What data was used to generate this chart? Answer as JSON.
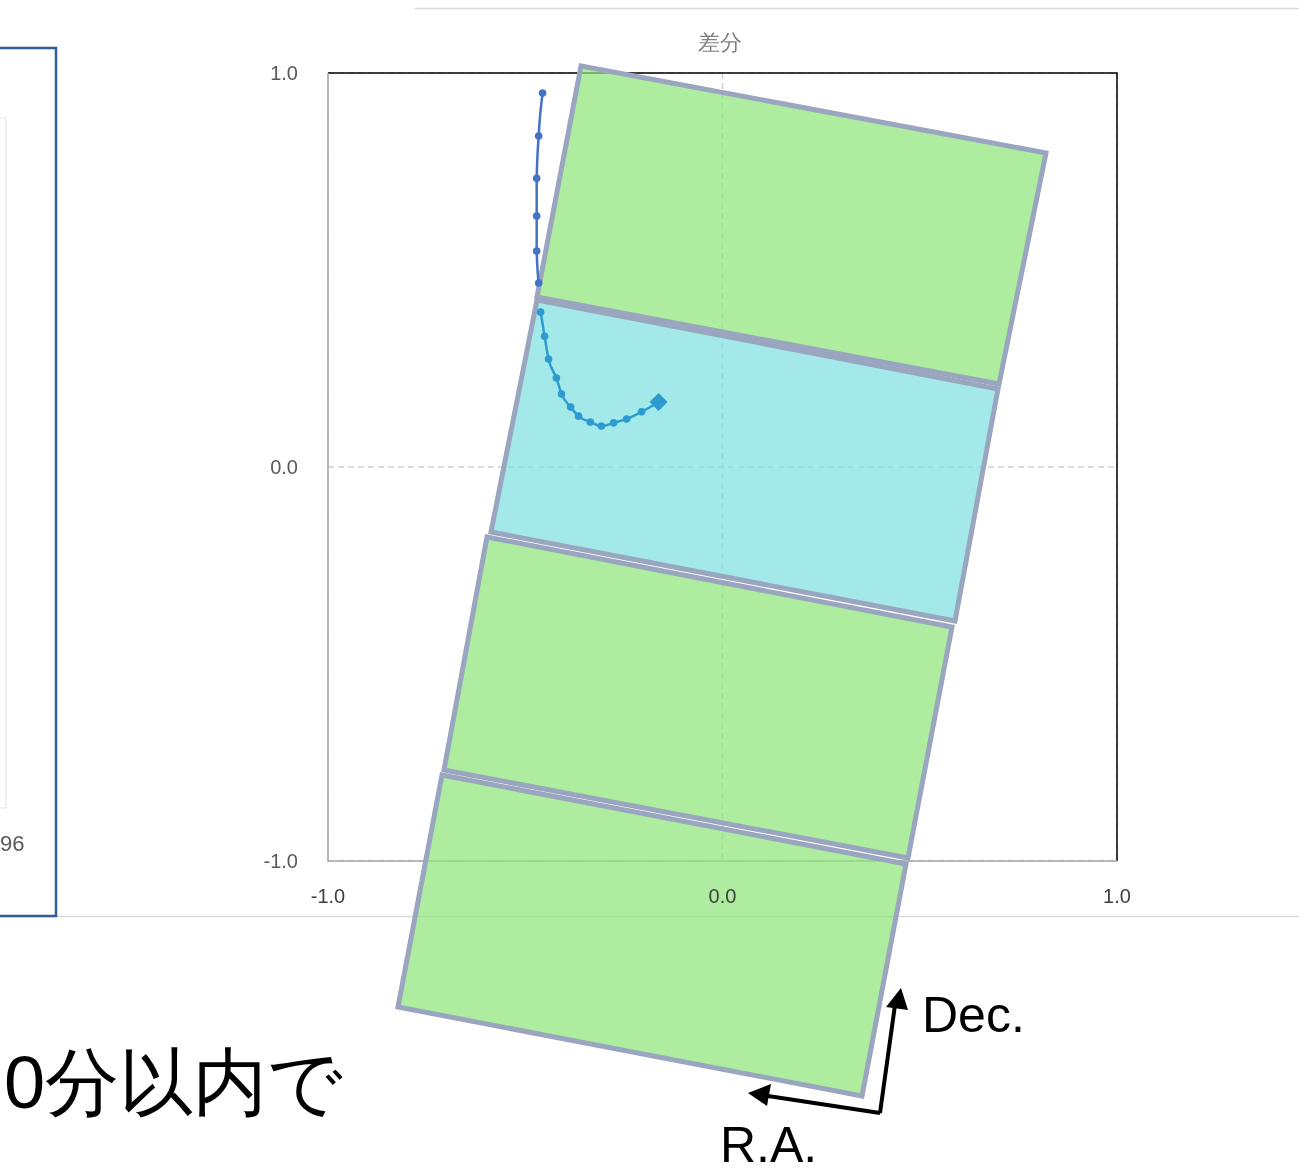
{
  "chart_data": {
    "type": "line",
    "title": "差分",
    "xlim": [
      -1,
      1
    ],
    "ylim": [
      -1,
      1
    ],
    "xticks": [
      {
        "value": -1,
        "label": "-1.0"
      },
      {
        "value": 0,
        "label": "0.0"
      },
      {
        "value": 1,
        "label": "1.0"
      }
    ],
    "yticks": [
      {
        "value": -1,
        "label": "-1.0"
      },
      {
        "value": 0,
        "label": "0.0"
      },
      {
        "value": 1,
        "label": "1.0"
      }
    ],
    "grid": true,
    "marker": "circle",
    "line_style": "solid",
    "series": [
      {
        "color": "#4472c4",
        "x": [
          -0.456,
          -0.466,
          -0.471,
          -0.471,
          -0.471,
          -0.466
        ],
        "values": [
          0.949,
          0.84,
          0.733,
          0.637,
          0.548,
          0.467
        ]
      },
      {
        "color": "#2e9bd0",
        "x": [
          -0.461,
          -0.451,
          -0.441,
          -0.421,
          -0.408,
          -0.385,
          -0.365,
          -0.335,
          -0.307,
          -0.276,
          -0.243,
          -0.205,
          -0.162
        ],
        "values": [
          0.393,
          0.332,
          0.274,
          0.226,
          0.185,
          0.152,
          0.129,
          0.114,
          0.104,
          0.112,
          0.122,
          0.14,
          0.165
        ]
      },
      {
        "type": "scatter",
        "marker": "diamond",
        "color": "#2e9bd0",
        "x": [
          -0.162
        ],
        "values": [
          0.165
        ]
      }
    ],
    "annotations": [
      "Dec.",
      "R.A.",
      "0分以内で",
      "96"
    ]
  }
}
